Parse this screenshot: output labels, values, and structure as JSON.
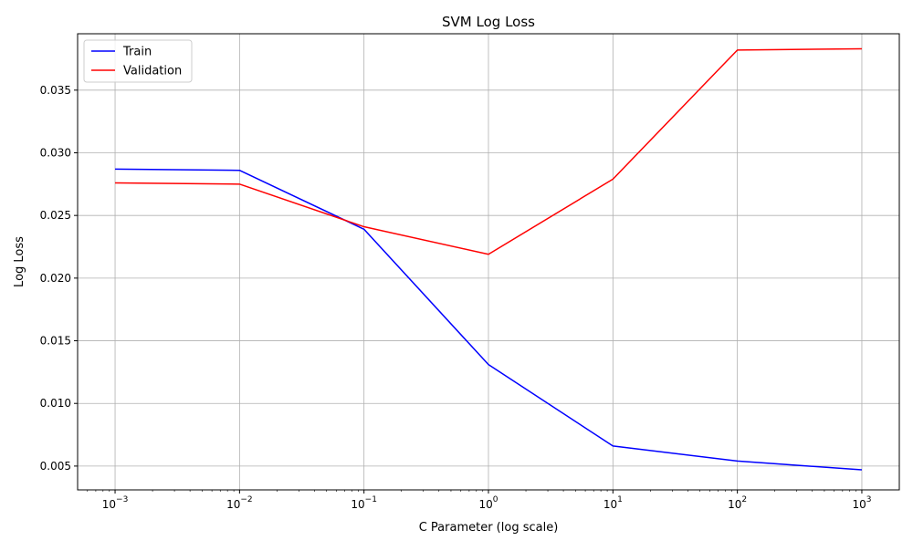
{
  "chart_data": {
    "type": "line",
    "title": "SVM Log Loss",
    "xlabel": "C Parameter (log scale)",
    "ylabel": "Log Loss",
    "x_scale": "log",
    "x": [
      0.001,
      0.01,
      0.1,
      1,
      10,
      100,
      1000
    ],
    "x_ticks": [
      {
        "value": 0.001,
        "base": "10",
        "exp": "−3"
      },
      {
        "value": 0.01,
        "base": "10",
        "exp": "−2"
      },
      {
        "value": 0.1,
        "base": "10",
        "exp": "−1"
      },
      {
        "value": 1,
        "base": "10",
        "exp": "0"
      },
      {
        "value": 10,
        "base": "10",
        "exp": "1"
      },
      {
        "value": 100,
        "base": "10",
        "exp": "2"
      },
      {
        "value": 1000,
        "base": "10",
        "exp": "3"
      }
    ],
    "xlim": [
      0.0005,
      2000
    ],
    "ylim": [
      0.0031,
      0.0395
    ],
    "y_ticks": [
      {
        "value": 0.005,
        "label": "0.005"
      },
      {
        "value": 0.01,
        "label": "0.010"
      },
      {
        "value": 0.015,
        "label": "0.015"
      },
      {
        "value": 0.02,
        "label": "0.020"
      },
      {
        "value": 0.025,
        "label": "0.025"
      },
      {
        "value": 0.03,
        "label": "0.030"
      },
      {
        "value": 0.035,
        "label": "0.035"
      }
    ],
    "grid": true,
    "legend_position": "top-left",
    "series": [
      {
        "name": "Train",
        "color": "#0000ff",
        "values": [
          0.0287,
          0.0286,
          0.0239,
          0.0131,
          0.0066,
          0.0054,
          0.0047
        ]
      },
      {
        "name": "Validation",
        "color": "#ff0000",
        "values": [
          0.0276,
          0.0275,
          0.0241,
          0.0219,
          0.0279,
          0.0382,
          0.0383
        ]
      }
    ]
  }
}
